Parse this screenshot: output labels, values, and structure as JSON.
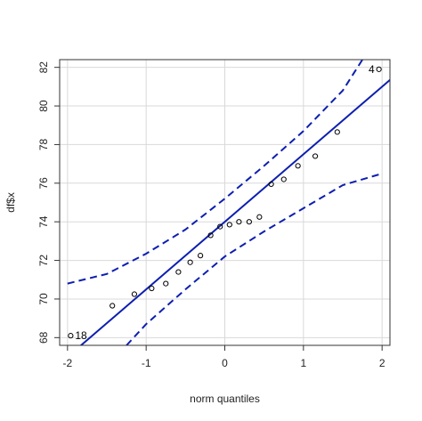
{
  "chart_data": {
    "type": "scatter",
    "title": "",
    "xlabel": "norm quantiles",
    "ylabel": "df$x",
    "xlim": [
      -2.1,
      2.1
    ],
    "ylim": [
      67.6,
      82.4
    ],
    "xticks": [
      -2,
      -1,
      0,
      1,
      2
    ],
    "yticks": [
      68,
      70,
      72,
      74,
      76,
      78,
      80,
      82
    ],
    "xtick_labels": [
      "-2",
      "-1",
      "0",
      "1",
      "2"
    ],
    "ytick_labels": [
      "68",
      "70",
      "72",
      "74",
      "76",
      "78",
      "80",
      "82"
    ],
    "grid": true,
    "points": [
      {
        "x": -1.96,
        "y": 68.1
      },
      {
        "x": -1.43,
        "y": 69.65
      },
      {
        "x": -1.15,
        "y": 70.25
      },
      {
        "x": -0.93,
        "y": 70.55
      },
      {
        "x": -0.75,
        "y": 70.8
      },
      {
        "x": -0.59,
        "y": 71.4
      },
      {
        "x": -0.44,
        "y": 71.9
      },
      {
        "x": -0.31,
        "y": 72.25
      },
      {
        "x": -0.18,
        "y": 73.3
      },
      {
        "x": -0.06,
        "y": 73.75
      },
      {
        "x": 0.06,
        "y": 73.85
      },
      {
        "x": 0.18,
        "y": 74.0
      },
      {
        "x": 0.31,
        "y": 74.0
      },
      {
        "x": 0.44,
        "y": 74.25
      },
      {
        "x": 0.59,
        "y": 75.95
      },
      {
        "x": 0.75,
        "y": 76.2
      },
      {
        "x": 0.93,
        "y": 76.9
      },
      {
        "x": 1.15,
        "y": 77.4
      },
      {
        "x": 1.43,
        "y": 78.65
      },
      {
        "x": 1.96,
        "y": 81.9
      }
    ],
    "point_labels": [
      {
        "text": "18",
        "x": -1.96,
        "y": 68.1,
        "side": "right"
      },
      {
        "text": "4",
        "x": 1.96,
        "y": 81.9,
        "side": "left"
      }
    ],
    "reference_line": {
      "intercept": 74.0,
      "slope": 3.5,
      "color": "#0d1fb0"
    },
    "confidence_envelope": {
      "color": "#0d1fb0",
      "upper": [
        {
          "x": -2.0,
          "y": 70.8
        },
        {
          "x": -1.5,
          "y": 71.3
        },
        {
          "x": -1.0,
          "y": 72.35
        },
        {
          "x": -0.5,
          "y": 73.6
        },
        {
          "x": 0.0,
          "y": 75.2
        },
        {
          "x": 0.5,
          "y": 76.9
        },
        {
          "x": 1.0,
          "y": 78.7
        },
        {
          "x": 1.5,
          "y": 80.8
        },
        {
          "x": 1.75,
          "y": 82.4
        }
      ],
      "lower": [
        {
          "x": -1.25,
          "y": 67.6
        },
        {
          "x": -1.0,
          "y": 68.7
        },
        {
          "x": -0.5,
          "y": 70.5
        },
        {
          "x": 0.0,
          "y": 72.2
        },
        {
          "x": 0.5,
          "y": 73.5
        },
        {
          "x": 1.0,
          "y": 74.7
        },
        {
          "x": 1.5,
          "y": 75.9
        },
        {
          "x": 2.0,
          "y": 76.5
        }
      ]
    }
  }
}
